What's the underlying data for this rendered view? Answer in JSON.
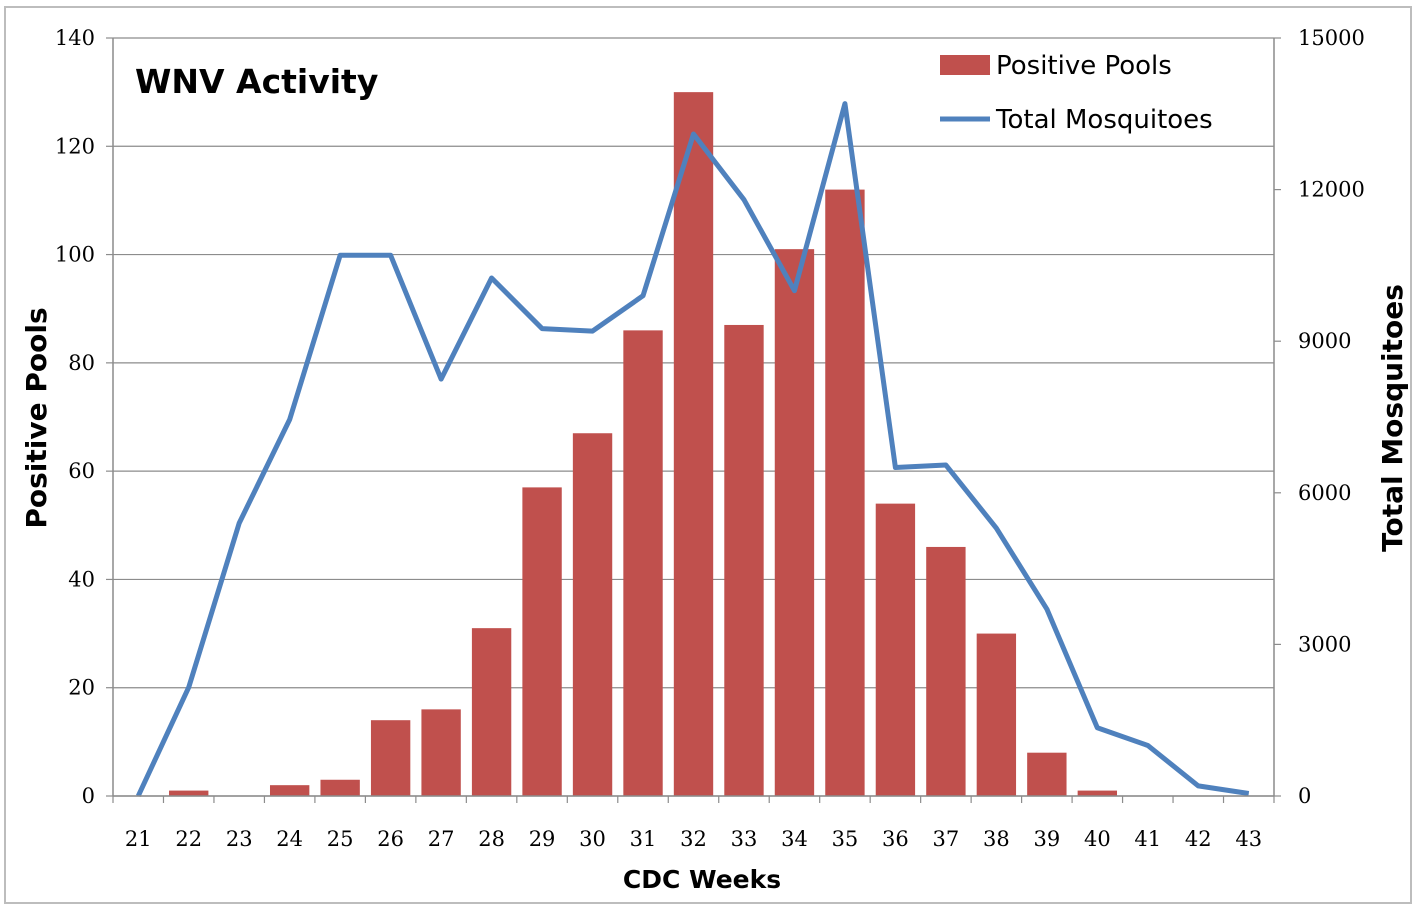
{
  "chart_data": {
    "type": "bar",
    "title": "WNV Activity",
    "xlabel": "CDC Weeks",
    "ylabel_left": "Positive Pools",
    "ylabel_right": "Total Mosquitoes",
    "categories": [
      "21",
      "22",
      "23",
      "24",
      "25",
      "26",
      "27",
      "28",
      "29",
      "30",
      "31",
      "32",
      "33",
      "34",
      "35",
      "36",
      "37",
      "38",
      "39",
      "40",
      "41",
      "42",
      "43"
    ],
    "ylim_left": [
      0,
      140
    ],
    "yticks_left": [
      0,
      20,
      40,
      60,
      80,
      100,
      120,
      140
    ],
    "ylim_right": [
      0,
      15000
    ],
    "yticks_right": [
      0,
      3000,
      6000,
      9000,
      12000,
      15000
    ],
    "grid": true,
    "legend_position": "top-right",
    "series": [
      {
        "name": "Positive Pools",
        "type": "bar",
        "axis": "left",
        "color": "#c0504d",
        "values": [
          0,
          1,
          0,
          2,
          3,
          14,
          16,
          31,
          57,
          67,
          86,
          130,
          87,
          101,
          112,
          54,
          46,
          30,
          8,
          1,
          0,
          0,
          0
        ]
      },
      {
        "name": "Total Mosquitoes",
        "type": "line",
        "axis": "right",
        "color": "#4f81bd",
        "values": [
          0,
          2150,
          5400,
          7450,
          10700,
          10700,
          8250,
          10250,
          9250,
          9200,
          9900,
          13100,
          11800,
          10000,
          13700,
          6500,
          6550,
          5300,
          3700,
          1350,
          1000,
          200,
          50
        ]
      }
    ]
  }
}
